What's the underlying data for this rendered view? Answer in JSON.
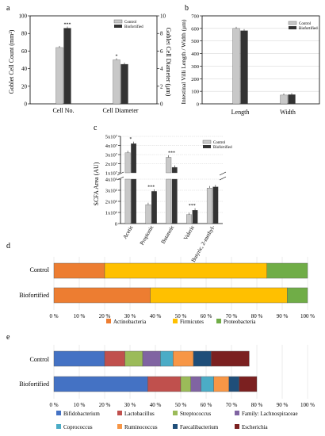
{
  "chart_data": [
    {
      "id": "a",
      "panel_label": "a",
      "type": "bar",
      "categories": [
        "Cell No.",
        "Cell Diameter"
      ],
      "series": [
        {
          "name": "Control",
          "color": "#c8c8c8",
          "values": [
            64,
            5.0
          ]
        },
        {
          "name": "Biofortified",
          "color": "#333333",
          "values": [
            86,
            4.5
          ]
        }
      ],
      "ylabel": "Goblet Cell Count (mm²)",
      "ylabel_right": "Goblet Cell Diameter (μm)",
      "ylim": [
        0,
        100
      ],
      "ylim_right": [
        0,
        10
      ],
      "yticks": [
        "0",
        "20",
        "40",
        "60",
        "80",
        "100"
      ],
      "yticks_right": [
        "0",
        "2",
        "4",
        "6",
        "8",
        "10"
      ],
      "annotations": [
        "",
        "***",
        "*",
        ""
      ],
      "legend": [
        "Control",
        "Biofortified"
      ],
      "legend_position": "top-right"
    },
    {
      "id": "b",
      "panel_label": "b",
      "type": "bar",
      "categories": [
        "Length",
        "Width"
      ],
      "series": [
        {
          "name": "Control",
          "color": "#c8c8c8",
          "values": [
            600,
            70
          ]
        },
        {
          "name": "Biofortified",
          "color": "#333333",
          "values": [
            582,
            73
          ]
        }
      ],
      "ylabel": "Intestinal Villi Length / Width (μm)",
      "ylim": [
        0,
        700
      ],
      "yticks": [
        "0",
        "100",
        "200",
        "300",
        "400",
        "500",
        "600",
        "700"
      ],
      "legend": [
        "Control",
        "Biofortified"
      ],
      "legend_position": "top-right",
      "grid": true
    },
    {
      "id": "c",
      "panel_label": "c",
      "type": "bar",
      "categories": [
        "Acetic",
        "Propionic",
        "Butanoic",
        "Valeric",
        "Butyric, 2-methyl-"
      ],
      "series": [
        {
          "name": "Control",
          "color": "#c8c8c8",
          "values": [
            32000000,
            1700000,
            27000000,
            800000,
            3200000
          ]
        },
        {
          "name": "Biofortified",
          "color": "#333333",
          "values": [
            42000000,
            2900000,
            16000000,
            1200000,
            3300000
          ]
        }
      ],
      "ylabel": "SCFA Area (AU)",
      "yticks_lower": [
        "0",
        "1x10⁶",
        "2x10⁶",
        "3x10⁶",
        "4x10⁶"
      ],
      "yticks_upper": [
        "1x10⁷",
        "2x10⁷",
        "3x10⁷",
        "4x10⁷",
        "5x10⁷"
      ],
      "annotations": [
        "*",
        "***",
        "***",
        "***",
        ""
      ],
      "legend": [
        "Control",
        "Biofortified"
      ],
      "legend_position": "top-right",
      "broken_axis": true
    },
    {
      "id": "d",
      "panel_label": "d",
      "type": "bar",
      "orientation": "horizontal-stacked-percent",
      "categories": [
        "Control",
        "Biofortified"
      ],
      "series": [
        {
          "name": "Actinobacteria",
          "color": "#ed7d31",
          "values": [
            20,
            38
          ]
        },
        {
          "name": "Firmicutes",
          "color": "#ffc000",
          "values": [
            64,
            54
          ]
        },
        {
          "name": "Proteobacteria",
          "color": "#70ad47",
          "values": [
            16,
            8
          ]
        }
      ],
      "xticks": [
        "0 %",
        "10 %",
        "20 %",
        "30 %",
        "40 %",
        "50 %",
        "60 %",
        "70 %",
        "80 %",
        "90 %",
        "100 %"
      ],
      "xlim": [
        0,
        100
      ],
      "legend": [
        "Actinobacteria",
        "Firmicutes",
        "Proteobacteria"
      ],
      "legend_position": "bottom"
    },
    {
      "id": "e",
      "panel_label": "e",
      "type": "bar",
      "orientation": "horizontal-stacked-percent",
      "categories": [
        "Control",
        "Biofortified"
      ],
      "series": [
        {
          "name": "Bifidobacterium",
          "color": "#4472c4",
          "values": [
            20,
            37
          ]
        },
        {
          "name": "Lactobacillus",
          "color": "#c0504d",
          "values": [
            8,
            13
          ]
        },
        {
          "name": "Streptococcus",
          "color": "#9bbb59",
          "values": [
            7,
            4
          ]
        },
        {
          "name": "Family: Lachnospiraceae",
          "color": "#8064a2",
          "values": [
            7,
            4
          ]
        },
        {
          "name": "Coprococcus",
          "color": "#4bacc6",
          "values": [
            5,
            5
          ]
        },
        {
          "name": "Ruminococcus",
          "color": "#f79646",
          "values": [
            8,
            6
          ]
        },
        {
          "name": "Faecalibacterium",
          "color": "#1f4e79",
          "values": [
            7,
            4
          ]
        },
        {
          "name": "Escherichia",
          "color": "#7b2020",
          "values": [
            15,
            7
          ]
        }
      ],
      "xticks": [
        "0 %",
        "10 %",
        "20 %",
        "30 %",
        "40 %",
        "50 %",
        "60 %",
        "70 %",
        "80 %",
        "90 %",
        "100 %"
      ],
      "xlim": [
        0,
        100
      ],
      "legend": [
        "Bifidobacterium",
        "Lactobacillus",
        "Streptococcus",
        "Family:  Lachnospiraceae",
        "Coprococcus",
        "Ruminococcus",
        "Faecalibacterium",
        "Escherichia"
      ],
      "legend_position": "bottom"
    }
  ]
}
